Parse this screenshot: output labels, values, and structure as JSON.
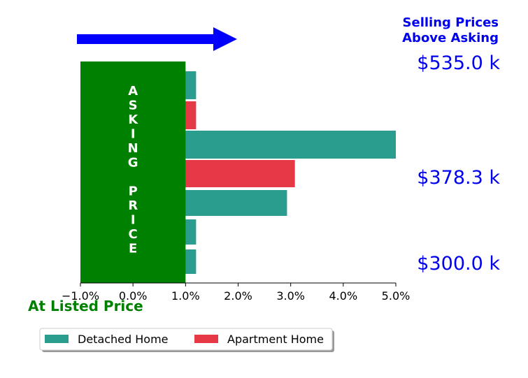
{
  "chart_data": {
    "type": "bar",
    "orientation": "horizontal",
    "xlim": [
      -1.0,
      5.0
    ],
    "x_ticks": [
      "−1.0%",
      "0.0%",
      "1.0%",
      "2.0%",
      "3.0%",
      "4.0%",
      "5.0%"
    ],
    "asking_price_band": {
      "x_range": [
        -1.0,
        1.0
      ],
      "color": "#008000"
    },
    "asking_price_label": "ASKING PRICE",
    "bars": [
      {
        "series": "Detached Home",
        "value": 1.2
      },
      {
        "series": "Apartment Home",
        "value": 1.2
      },
      {
        "series": "Detached Home",
        "value": 5.0
      },
      {
        "series": "Apartment Home",
        "value": 3.08
      },
      {
        "series": "Detached Home",
        "value": 2.93
      },
      {
        "series": "Detached Home",
        "value": 1.2
      },
      {
        "series": "Detached Home",
        "value": 1.2
      }
    ],
    "series": [
      {
        "name": "Detached Home",
        "color": "#2a9d8f"
      },
      {
        "name": "Apartment Home",
        "color": "#e63946"
      }
    ],
    "price_labels": [
      "$535.0 k",
      "$378.3 k",
      "$300.0 k"
    ],
    "header_lines": [
      "Selling Prices",
      "Above Asking"
    ],
    "listed_label": "At Listed Price",
    "arrow_color": "#0000ff",
    "price_color": "#0000ee",
    "legend_position": "bottom-left"
  }
}
